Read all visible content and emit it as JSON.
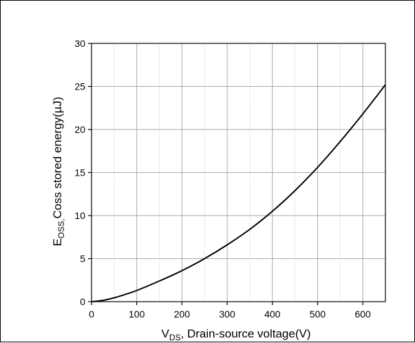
{
  "chart_data": {
    "type": "line",
    "title": "",
    "xlabel": {
      "main": "V",
      "sub": "DS",
      "rest": ", Drain-source voltage(V)"
    },
    "ylabel": {
      "main": "E",
      "sub": "OSS,",
      "rest": "Coss stored energy(µJ)"
    },
    "xlim": [
      0,
      650
    ],
    "ylim": [
      0,
      30
    ],
    "x_ticks": [
      0,
      100,
      200,
      300,
      400,
      500,
      600
    ],
    "x_tick_labels": [
      "0",
      "100",
      "200",
      "300",
      "400",
      "500",
      "600"
    ],
    "y_ticks": [
      0,
      5,
      10,
      15,
      20,
      25,
      30
    ],
    "y_tick_labels": [
      "0",
      "5",
      "10",
      "15",
      "20",
      "25",
      "30"
    ],
    "grid": {
      "major": true,
      "minor_x_dotted": true
    },
    "series": [
      {
        "x": [
          0,
          25,
          50,
          75,
          100,
          150,
          200,
          250,
          300,
          350,
          400,
          450,
          500,
          550,
          600,
          650
        ],
        "y": [
          0,
          0.15,
          0.45,
          0.85,
          1.3,
          2.4,
          3.6,
          5.0,
          6.6,
          8.4,
          10.5,
          12.9,
          15.6,
          18.6,
          21.8,
          25.2
        ],
        "color": "#000000"
      }
    ]
  }
}
